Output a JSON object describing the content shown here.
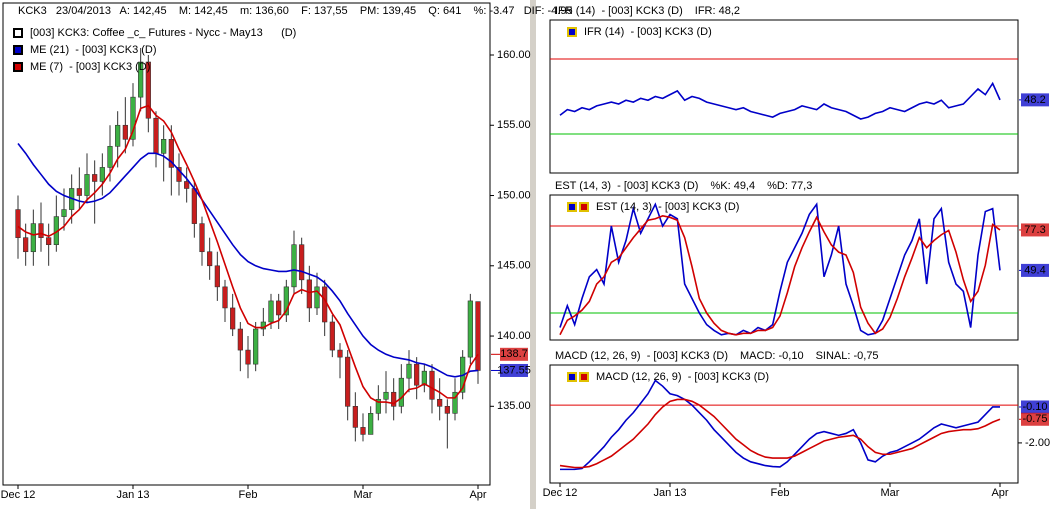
{
  "chart_data": [
    {
      "type": "candlestick",
      "header": "KCK3   23/04/2013   A: 142,45    M: 142,45    m: 136,60    F: 137,55    PM: 139,45    Q: 641    %: -3.47   DIF: -4.95",
      "name": "[003] KCK3: Coffee _c_ Futures - Nycc - May13      (D)",
      "up_color": "#3cb043",
      "down_color": "#c81e1e",
      "categories": [
        "Dec 12",
        null,
        null,
        null,
        null,
        null,
        null,
        null,
        null,
        null,
        null,
        null,
        null,
        null,
        null,
        "Jan 13",
        null,
        null,
        null,
        null,
        null,
        null,
        null,
        null,
        null,
        null,
        null,
        null,
        null,
        null,
        "Feb",
        null,
        null,
        null,
        null,
        null,
        null,
        null,
        null,
        null,
        null,
        null,
        null,
        null,
        null,
        "Mar",
        null,
        null,
        null,
        null,
        null,
        null,
        null,
        null,
        null,
        null,
        null,
        null,
        null,
        null,
        "Apr"
      ],
      "open": [
        149,
        147,
        146,
        148,
        147,
        146.5,
        148.5,
        149,
        150.5,
        150,
        151.5,
        151,
        152,
        153.5,
        155,
        154,
        157,
        159.5,
        155.5,
        153,
        154,
        152,
        151,
        150.5,
        148,
        146,
        145,
        143.5,
        142,
        140.5,
        139,
        138,
        140.5,
        141,
        142.5,
        141.5,
        143.5,
        146.5,
        144,
        142,
        143.5,
        141,
        139,
        138.5,
        135,
        133.5,
        133,
        134.5,
        135.5,
        136,
        135,
        137,
        138,
        136.5,
        137.5,
        135.5,
        135,
        134.5,
        136,
        138.5,
        142.45
      ],
      "high": [
        150,
        148,
        149,
        149.5,
        148,
        150,
        150.5,
        151.5,
        152,
        153,
        152.5,
        153,
        155,
        156,
        157,
        158,
        160.5,
        160,
        156,
        155,
        155,
        153,
        152,
        151,
        148.5,
        147,
        146,
        144,
        143,
        141,
        140,
        141,
        142,
        143,
        143,
        144,
        147.5,
        147,
        145,
        144.5,
        144,
        141.5,
        139.5,
        139,
        136,
        134.5,
        135,
        136.5,
        137.5,
        137,
        138,
        139,
        138.5,
        138,
        138,
        137,
        135.5,
        137,
        139,
        143,
        142.45
      ],
      "low": [
        145.5,
        145,
        145,
        146,
        145,
        146,
        147.5,
        148,
        149,
        149.5,
        148,
        150,
        151,
        152,
        153,
        153.5,
        156,
        154.5,
        152,
        151,
        150,
        150,
        149.5,
        147,
        145,
        144,
        142.5,
        141,
        140,
        137.5,
        137,
        137.5,
        140,
        140.5,
        140.5,
        141,
        143,
        143,
        141,
        141.5,
        140,
        138.5,
        137,
        134,
        132.5,
        132.5,
        133,
        134,
        134.5,
        134,
        134.5,
        136,
        135.5,
        136,
        134.5,
        134,
        132,
        134,
        135.5,
        138,
        136.6
      ],
      "close": [
        147,
        146,
        148,
        147,
        146.5,
        148.5,
        149,
        150.5,
        150,
        151.5,
        151,
        152,
        153.5,
        155,
        154,
        157,
        159.5,
        155.5,
        153,
        154,
        152,
        151,
        150.5,
        148,
        146,
        145,
        143.5,
        142,
        140.5,
        139,
        138,
        140.5,
        141,
        142.5,
        141.5,
        143.5,
        146.5,
        144,
        142,
        143.5,
        141,
        139,
        138.5,
        135,
        133.5,
        133,
        134.5,
        135.5,
        136,
        135,
        137,
        138,
        136.5,
        137.5,
        135.5,
        135,
        134.5,
        136,
        138.5,
        142.5,
        137.55
      ],
      "series": [
        {
          "name": "ME (21)  - [003] KCK3 (D)",
          "color": "#0000c8",
          "values": [
            153.7,
            153,
            152.2,
            151.5,
            150.8,
            150.3,
            150,
            149.8,
            149.6,
            149.5,
            149.6,
            149.8,
            150.2,
            150.8,
            151.4,
            152,
            152.6,
            153,
            153,
            152.8,
            152.4,
            151.8,
            151.2,
            150.5,
            149.7,
            148.9,
            148.1,
            147.3,
            146.5,
            145.8,
            145.3,
            145,
            144.8,
            144.7,
            144.6,
            144.6,
            144.7,
            144.6,
            144.4,
            144.2,
            143.8,
            143.2,
            142.5,
            141.6,
            140.8,
            140,
            139.4,
            139,
            138.7,
            138.5,
            138.4,
            138.3,
            138.1,
            138,
            137.8,
            137.5,
            137.2,
            137.1,
            137.2,
            137.5,
            137.55
          ]
        },
        {
          "name": "ME (7)  - [003] KCK3 (D)",
          "color": "#d00000",
          "values": [
            147.8,
            147.4,
            147.2,
            147.3,
            147.1,
            147.4,
            147.8,
            148.5,
            149,
            149.7,
            150.2,
            150.8,
            151.6,
            152.6,
            153.3,
            154.6,
            156.2,
            156.4,
            155.7,
            155.3,
            154.5,
            153.3,
            152.2,
            151,
            149.7,
            148.2,
            146.7,
            145.1,
            143.5,
            142,
            140.9,
            140.6,
            140.6,
            140.9,
            141.1,
            141.8,
            143,
            143.3,
            143.1,
            143.2,
            142.6,
            141.6,
            140.8,
            139.3,
            137.8,
            136.4,
            135.6,
            135.3,
            135.3,
            135.2,
            135.6,
            136.2,
            136.3,
            136.6,
            136.3,
            136,
            135.6,
            135.6,
            136.3,
            137.9,
            138.7
          ]
        }
      ],
      "ylim": [
        129.4,
        163.7
      ],
      "yticks": [
        {
          "value": 135,
          "label": "135.00"
        },
        {
          "value": 140,
          "label": "140.00"
        },
        {
          "value": 145,
          "label": "145.00"
        },
        {
          "value": 150,
          "label": "150.00"
        },
        {
          "value": 155,
          "label": "155.00"
        },
        {
          "value": 160,
          "label": "160.00"
        }
      ]
    },
    {
      "type": "line",
      "title_parts": [
        {
          "text": "IFR (14)  - [003] KCK3 (D)",
          "color": "#0000c8"
        },
        {
          "text": "IFR: 48,2",
          "color": "#0000c8"
        }
      ],
      "series": [
        {
          "name": "IFR (14)  - [003] KCK3 (D)",
          "color": "#0000c8",
          "values": [
            40,
            43,
            42,
            44,
            43,
            45,
            46,
            47,
            46,
            48,
            47,
            49,
            48,
            50,
            49,
            51,
            53,
            48,
            50,
            49,
            47,
            46,
            45,
            44,
            43,
            44,
            42,
            41,
            40,
            39,
            41,
            42,
            43,
            45,
            44,
            43,
            46,
            44,
            43,
            42,
            40,
            38,
            39,
            41,
            42,
            44,
            43,
            42,
            44,
            46,
            47,
            46,
            48,
            44,
            45,
            46,
            50,
            54,
            51,
            57,
            48.2
          ]
        }
      ],
      "levels": [
        {
          "value": 70,
          "color": "#e00000"
        },
        {
          "value": 30,
          "color": "#00c000"
        }
      ],
      "ylim": [
        9.2,
        90.8
      ],
      "yticks": []
    },
    {
      "type": "line",
      "title_parts": [
        {
          "text": "EST (14, 3)  - [003] KCK3 (D)",
          "color": "#0000c8"
        },
        {
          "text": "%K: 49,4",
          "color": "#0000c8"
        },
        {
          "text": "%D: 77,3",
          "color": "#d00000"
        }
      ],
      "legend": "EST (14, 3)  - [003] KCK3 (D)",
      "series": [
        {
          "color": "#0000c8",
          "values": [
            10,
            25,
            12,
            30,
            45,
            50,
            40,
            80,
            55,
            70,
            92,
            75,
            85,
            95,
            80,
            88,
            85,
            40,
            30,
            20,
            12,
            8,
            5,
            6,
            5,
            8,
            6,
            10,
            8,
            12,
            35,
            55,
            65,
            75,
            88,
            95,
            45,
            60,
            80,
            40,
            25,
            8,
            5,
            6,
            15,
            30,
            45,
            60,
            70,
            85,
            40,
            85,
            92,
            55,
            40,
            35,
            10,
            60,
            90,
            92,
            49.4
          ]
        },
        {
          "color": "#d00000",
          "values": [
            5,
            15,
            18,
            22,
            28,
            40,
            45,
            55,
            58,
            65,
            72,
            78,
            84,
            85,
            87,
            86,
            84,
            72,
            52,
            30,
            20,
            13,
            8,
            6,
            5,
            6,
            6,
            8,
            8,
            10,
            18,
            34,
            52,
            65,
            76,
            86,
            76,
            67,
            62,
            60,
            48,
            24,
            13,
            6,
            9,
            17,
            30,
            45,
            58,
            72,
            65,
            70,
            74,
            77,
            62,
            43,
            28,
            35,
            53,
            81,
            77.3
          ]
        }
      ],
      "levels": [
        {
          "value": 80,
          "color": "#e00000"
        },
        {
          "value": 20,
          "color": "#00c000"
        }
      ],
      "ylim": [
        1.4,
        101.4
      ],
      "yticks": []
    },
    {
      "type": "line",
      "title_parts": [
        {
          "text": "MACD (12, 26, 9)  - [003] KCK3 (D)",
          "color": "#0000c8"
        },
        {
          "text": "MACD: -0,10",
          "color": "#0000c8"
        },
        {
          "text": "SINAL: -0,75",
          "color": "#d00000"
        }
      ],
      "legend": "MACD (12, 26, 9)  - [003] KCK3 (D)",
      "categories": [
        "Dec 12",
        null,
        null,
        null,
        null,
        null,
        null,
        null,
        null,
        null,
        null,
        null,
        null,
        null,
        null,
        "Jan 13",
        null,
        null,
        null,
        null,
        null,
        null,
        null,
        null,
        null,
        null,
        null,
        null,
        null,
        null,
        "Feb",
        null,
        null,
        null,
        null,
        null,
        null,
        null,
        null,
        null,
        null,
        null,
        null,
        null,
        null,
        "Mar",
        null,
        null,
        null,
        null,
        null,
        null,
        null,
        null,
        null,
        null,
        null,
        null,
        null,
        null,
        "Apr"
      ],
      "series": [
        {
          "color": "#0000c8",
          "last_label": "-0.10",
          "values": [
            -3.4,
            -3.4,
            -3.4,
            -3.35,
            -3.0,
            -2.6,
            -2.2,
            -1.7,
            -1.3,
            -0.8,
            -0.4,
            0.1,
            0.6,
            1.3,
            1.0,
            0.6,
            0.5,
            0.3,
            0.0,
            -0.4,
            -0.8,
            -1.3,
            -1.7,
            -2.1,
            -2.5,
            -2.8,
            -3.0,
            -3.1,
            -3.2,
            -3.25,
            -3.27,
            -3.0,
            -2.6,
            -2.2,
            -1.8,
            -1.5,
            -1.4,
            -1.5,
            -1.6,
            -1.5,
            -1.3,
            -2.0,
            -2.9,
            -3.0,
            -2.7,
            -2.5,
            -2.4,
            -2.2,
            -2.0,
            -1.8,
            -1.5,
            -1.2,
            -1.0,
            -1.1,
            -1.2,
            -1.1,
            -1.0,
            -0.9,
            -0.5,
            -0.1,
            -0.1
          ]
        },
        {
          "color": "#d00000",
          "last_label": "-0.75",
          "values": [
            -3.2,
            -3.25,
            -3.3,
            -3.3,
            -3.25,
            -3.1,
            -2.9,
            -2.7,
            -2.4,
            -2.1,
            -1.8,
            -1.4,
            -1.0,
            -0.5,
            -0.1,
            0.2,
            0.3,
            0.3,
            0.2,
            0.0,
            -0.3,
            -0.6,
            -1.0,
            -1.4,
            -1.8,
            -2.1,
            -2.4,
            -2.6,
            -2.75,
            -2.8,
            -2.8,
            -2.8,
            -2.7,
            -2.5,
            -2.3,
            -2.1,
            -1.9,
            -1.8,
            -1.7,
            -1.65,
            -1.6,
            -1.8,
            -2.2,
            -2.5,
            -2.6,
            -2.6,
            -2.5,
            -2.4,
            -2.3,
            -2.1,
            -1.9,
            -1.7,
            -1.5,
            -1.4,
            -1.35,
            -1.3,
            -1.3,
            -1.25,
            -1.1,
            -0.9,
            -0.75
          ]
        }
      ],
      "levels": [
        {
          "value": 0,
          "color": "#e00000"
        }
      ],
      "ylim": [
        -4.12,
        2.12
      ],
      "yticks": [
        {
          "value": -2,
          "label": "-2.00"
        }
      ]
    }
  ]
}
